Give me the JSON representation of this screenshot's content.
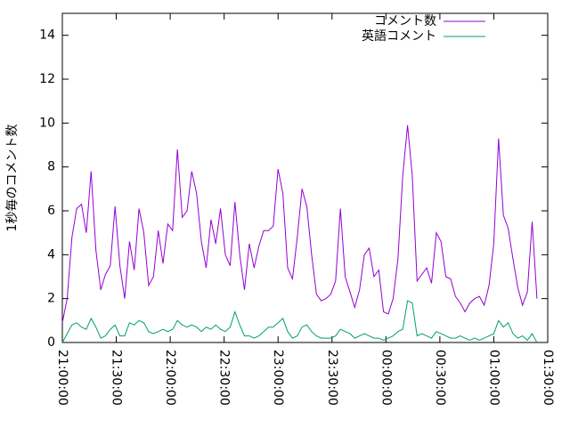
{
  "chart_data": {
    "type": "line",
    "ylabel": "1秒毎のコメント数",
    "x": [
      "21:00:00",
      "21:02:40",
      "21:05:20",
      "21:08:00",
      "21:10:40",
      "21:13:20",
      "21:16:00",
      "21:18:40",
      "21:21:20",
      "21:24:00",
      "21:26:40",
      "21:29:20",
      "21:32:00",
      "21:34:40",
      "21:37:20",
      "21:40:00",
      "21:42:40",
      "21:45:20",
      "21:48:00",
      "21:50:40",
      "21:53:20",
      "21:56:00",
      "21:58:40",
      "22:01:20",
      "22:04:00",
      "22:06:40",
      "22:09:20",
      "22:12:00",
      "22:14:40",
      "22:17:20",
      "22:20:00",
      "22:22:40",
      "22:25:20",
      "22:28:00",
      "22:30:40",
      "22:33:20",
      "22:36:00",
      "22:38:40",
      "22:41:20",
      "22:44:00",
      "22:46:40",
      "22:49:20",
      "22:52:00",
      "22:54:40",
      "22:57:20",
      "23:00:00",
      "23:02:40",
      "23:05:20",
      "23:08:00",
      "23:10:40",
      "23:13:20",
      "23:16:00",
      "23:18:40",
      "23:21:20",
      "23:24:00",
      "23:26:40",
      "23:29:20",
      "23:32:00",
      "23:34:40",
      "23:37:20",
      "23:40:00",
      "23:42:40",
      "23:45:20",
      "23:48:00",
      "23:50:40",
      "23:53:20",
      "23:56:00",
      "23:58:40",
      "00:01:20",
      "00:04:00",
      "00:06:40",
      "00:09:20",
      "00:12:00",
      "00:14:40",
      "00:17:20",
      "00:20:00",
      "00:22:40",
      "00:25:20",
      "00:28:00",
      "00:30:40",
      "00:33:20",
      "00:36:00",
      "00:38:40",
      "00:41:20",
      "00:44:00",
      "00:46:40",
      "00:49:20",
      "00:52:00",
      "00:54:40",
      "00:57:20",
      "01:00:00",
      "01:02:40",
      "01:05:20",
      "01:08:00",
      "01:10:40",
      "01:13:20",
      "01:16:00",
      "01:18:40",
      "01:21:20",
      "01:24:00"
    ],
    "series": [
      {
        "name": "コメント数",
        "color": "#9400d3",
        "values": [
          0.9,
          2.0,
          4.8,
          6.1,
          6.3,
          5.0,
          7.8,
          4.2,
          2.4,
          3.1,
          3.5,
          6.2,
          3.5,
          2.0,
          4.6,
          3.3,
          6.1,
          5.0,
          2.6,
          3.0,
          5.1,
          3.6,
          5.4,
          5.1,
          8.8,
          5.7,
          6.0,
          7.8,
          6.8,
          4.6,
          3.4,
          5.6,
          4.5,
          6.1,
          4.0,
          3.5,
          6.4,
          4.0,
          2.4,
          4.5,
          3.4,
          4.4,
          5.1,
          5.1,
          5.3,
          7.9,
          6.8,
          3.4,
          2.9,
          4.8,
          7.0,
          6.2,
          4.0,
          2.2,
          1.9,
          2.0,
          2.2,
          2.8,
          6.1,
          3.0,
          2.3,
          1.6,
          2.4,
          4.0,
          4.3,
          3.0,
          3.3,
          1.4,
          1.3,
          2.0,
          3.8,
          7.6,
          9.9,
          7.6,
          2.8,
          3.1,
          3.4,
          2.7,
          5.0,
          4.6,
          3.0,
          2.9,
          2.1,
          1.8,
          1.4,
          1.8,
          2.0,
          2.1,
          1.7,
          2.6,
          4.5,
          9.3,
          5.8,
          5.2,
          3.8,
          2.5,
          1.7,
          2.3,
          5.5,
          2.0
        ]
      },
      {
        "name": "英語コメント",
        "color": "#009e73",
        "values": [
          0.0,
          0.4,
          0.8,
          0.9,
          0.7,
          0.6,
          1.1,
          0.7,
          0.2,
          0.3,
          0.6,
          0.8,
          0.3,
          0.3,
          0.9,
          0.8,
          1.0,
          0.9,
          0.5,
          0.4,
          0.5,
          0.6,
          0.5,
          0.6,
          1.0,
          0.8,
          0.7,
          0.8,
          0.7,
          0.5,
          0.7,
          0.6,
          0.8,
          0.6,
          0.5,
          0.7,
          1.4,
          0.8,
          0.3,
          0.3,
          0.2,
          0.3,
          0.5,
          0.7,
          0.7,
          0.9,
          1.1,
          0.5,
          0.2,
          0.3,
          0.7,
          0.8,
          0.5,
          0.3,
          0.2,
          0.2,
          0.2,
          0.3,
          0.6,
          0.5,
          0.4,
          0.2,
          0.3,
          0.4,
          0.3,
          0.2,
          0.2,
          0.1,
          0.2,
          0.3,
          0.5,
          0.6,
          1.9,
          1.8,
          0.3,
          0.4,
          0.3,
          0.2,
          0.5,
          0.4,
          0.3,
          0.2,
          0.2,
          0.3,
          0.2,
          0.1,
          0.2,
          0.1,
          0.2,
          0.3,
          0.4,
          1.0,
          0.7,
          0.9,
          0.4,
          0.2,
          0.3,
          0.1,
          0.4,
          0.0
        ]
      }
    ],
    "xlim": [
      "21:00:00",
      "01:30:00"
    ],
    "xticks": [
      "21:00:00",
      "21:30:00",
      "22:00:00",
      "22:30:00",
      "23:00:00",
      "23:30:00",
      "00:00:00",
      "00:30:00",
      "01:00:00",
      "01:30:00"
    ],
    "ylim": [
      0,
      15
    ],
    "yticks": [
      0,
      2,
      4,
      6,
      8,
      10,
      12,
      14
    ],
    "legend": "top right"
  }
}
